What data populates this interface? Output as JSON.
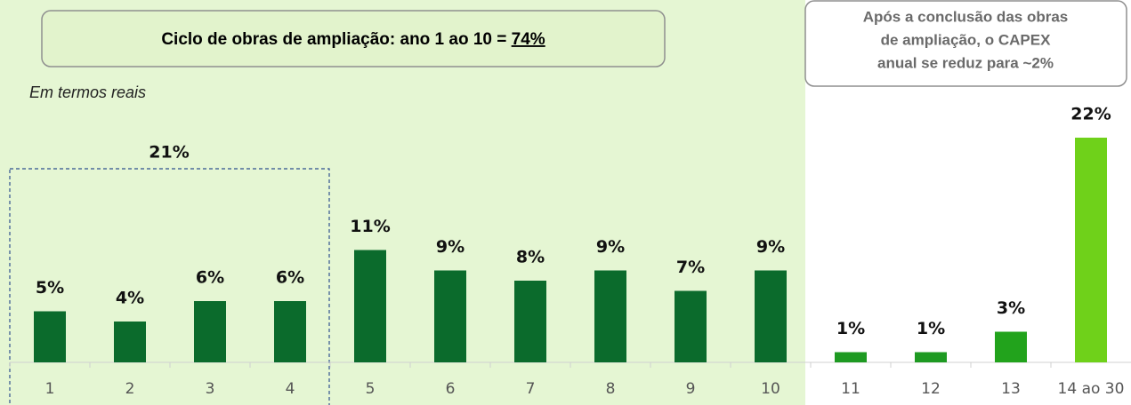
{
  "chart_data": {
    "type": "bar",
    "title": "Ciclo de obras de ampliação: ano 1 ao 10 =",
    "title_highlight": "74%",
    "subtitle": "Em termos reais",
    "annotation_lines": [
      "Após a conclusão das obras",
      "de ampliação, o CAPEX",
      "anual se reduz para ~2%"
    ],
    "group_label": "21%",
    "categories": [
      "1",
      "2",
      "3",
      "4",
      "5",
      "6",
      "7",
      "8",
      "9",
      "10",
      "11",
      "12",
      "13",
      "14 ao 30"
    ],
    "values": [
      5,
      4,
      6,
      6,
      11,
      9,
      8,
      9,
      7,
      9,
      1,
      1,
      3,
      22
    ],
    "value_labels": [
      "5%",
      "4%",
      "6%",
      "6%",
      "11%",
      "9%",
      "8%",
      "9%",
      "7%",
      "9%",
      "1%",
      "1%",
      "3%",
      "22%"
    ],
    "colors": [
      "#0b6b2c",
      "#0b6b2c",
      "#0b6b2c",
      "#0b6b2c",
      "#0b6b2c",
      "#0b6b2c",
      "#0b6b2c",
      "#0b6b2c",
      "#0b6b2c",
      "#0b6b2c",
      "#1e9a22",
      "#1e9a22",
      "#22a31c",
      "#6fd11a"
    ]
  }
}
